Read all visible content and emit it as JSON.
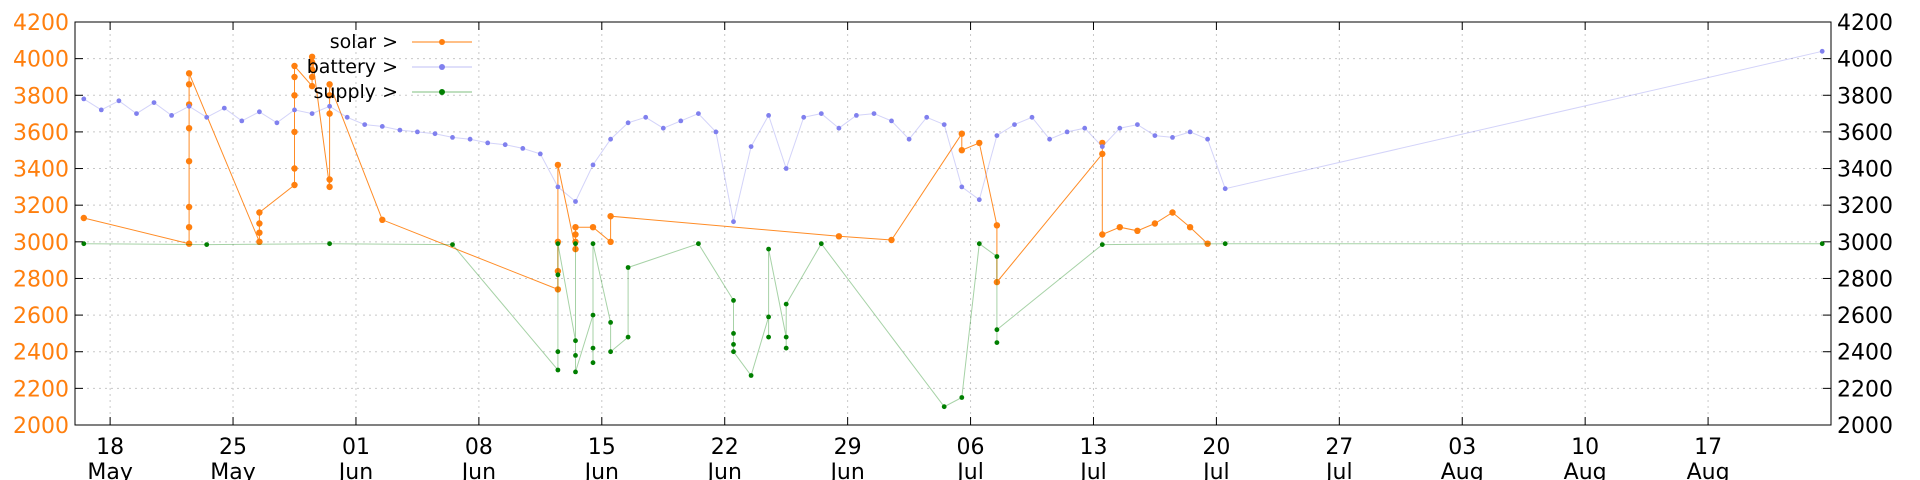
{
  "chart_data": {
    "type": "scatter",
    "title": "",
    "xlabel": "",
    "ylabel": "",
    "ylim": [
      2000,
      4200
    ],
    "y_ticks": [
      2000,
      2200,
      2400,
      2600,
      2800,
      3000,
      3200,
      3400,
      3600,
      3800,
      4000,
      4200
    ],
    "left_axis_color": "#ff7f0e",
    "right_axis_color": "#000000",
    "grid": true,
    "legend_position": "top-left",
    "x_range": [
      "2020-05-16",
      "2020-08-23"
    ],
    "x_ticks": [
      {
        "day": "18",
        "month": "May",
        "date": "2020-05-18"
      },
      {
        "day": "25",
        "month": "May",
        "date": "2020-05-25"
      },
      {
        "day": "01",
        "month": "Jun",
        "date": "2020-06-01"
      },
      {
        "day": "08",
        "month": "Jun",
        "date": "2020-06-08"
      },
      {
        "day": "15",
        "month": "Jun",
        "date": "2020-06-15"
      },
      {
        "day": "22",
        "month": "Jun",
        "date": "2020-06-22"
      },
      {
        "day": "29",
        "month": "Jun",
        "date": "2020-06-29"
      },
      {
        "day": "06",
        "month": "Jul",
        "date": "2020-07-06"
      },
      {
        "day": "13",
        "month": "Jul",
        "date": "2020-07-13"
      },
      {
        "day": "20",
        "month": "Jul",
        "date": "2020-07-20"
      },
      {
        "day": "27",
        "month": "Jul",
        "date": "2020-07-27"
      },
      {
        "day": "03",
        "month": "Aug",
        "date": "2020-08-03"
      },
      {
        "day": "10",
        "month": "Aug",
        "date": "2020-08-10"
      },
      {
        "day": "17",
        "month": "Aug",
        "date": "2020-08-17"
      }
    ],
    "series": [
      {
        "name": "solar >",
        "color": "#ff7f0e",
        "style": "line-points",
        "x": [
          "2020-05-16",
          "2020-05-22",
          "2020-05-22",
          "2020-05-22",
          "2020-05-22",
          "2020-05-22",
          "2020-05-22",
          "2020-05-22",
          "2020-05-22",
          "2020-05-26",
          "2020-05-26",
          "2020-05-26",
          "2020-05-26",
          "2020-05-28",
          "2020-05-28",
          "2020-05-28",
          "2020-05-28",
          "2020-05-28",
          "2020-05-28",
          "2020-05-29",
          "2020-05-29",
          "2020-05-29",
          "2020-05-29",
          "2020-05-29",
          "2020-05-30",
          "2020-05-30",
          "2020-05-30",
          "2020-05-30",
          "2020-05-30",
          "2020-06-02",
          "2020-06-12",
          "2020-06-12",
          "2020-06-12",
          "2020-06-12",
          "2020-06-13",
          "2020-06-13",
          "2020-06-13",
          "2020-06-13",
          "2020-06-14",
          "2020-06-15",
          "2020-06-15",
          "2020-06-28",
          "2020-07-01",
          "2020-07-05",
          "2020-07-05",
          "2020-07-06",
          "2020-07-07",
          "2020-07-07",
          "2020-07-13",
          "2020-07-13",
          "2020-07-13",
          "2020-07-14",
          "2020-07-15",
          "2020-07-16",
          "2020-07-17",
          "2020-07-18",
          "2020-07-19"
        ],
        "y": [
          3130,
          2990,
          3080,
          3190,
          3440,
          3620,
          3750,
          3860,
          3920,
          3000,
          3050,
          3100,
          3160,
          3310,
          3400,
          3600,
          3800,
          3900,
          3960,
          3850,
          3900,
          3940,
          3980,
          4010,
          3300,
          3340,
          3700,
          3800,
          3860,
          3120,
          2740,
          2840,
          3000,
          3420,
          2960,
          3000,
          3040,
          3080,
          3080,
          3000,
          3140,
          3030,
          3010,
          3590,
          3500,
          3540,
          3090,
          2780,
          3480,
          3540,
          3040,
          3080,
          3060,
          3100,
          3160,
          3080,
          2990
        ]
      },
      {
        "name": "battery >",
        "color": "#8080ee",
        "style": "points",
        "x": [
          "2020-05-16",
          "2020-05-17",
          "2020-05-18",
          "2020-05-19",
          "2020-05-20",
          "2020-05-21",
          "2020-05-22",
          "2020-05-23",
          "2020-05-24",
          "2020-05-25",
          "2020-05-26",
          "2020-05-27",
          "2020-05-28",
          "2020-05-29",
          "2020-05-30",
          "2020-05-31",
          "2020-06-01",
          "2020-06-02",
          "2020-06-03",
          "2020-06-04",
          "2020-06-05",
          "2020-06-06",
          "2020-06-07",
          "2020-06-08",
          "2020-06-09",
          "2020-06-10",
          "2020-06-11",
          "2020-06-12",
          "2020-06-13",
          "2020-06-14",
          "2020-06-15",
          "2020-06-16",
          "2020-06-17",
          "2020-06-18",
          "2020-06-19",
          "2020-06-20",
          "2020-06-21",
          "2020-06-22",
          "2020-06-23",
          "2020-06-24",
          "2020-06-25",
          "2020-06-26",
          "2020-06-27",
          "2020-06-28",
          "2020-06-29",
          "2020-06-30",
          "2020-07-01",
          "2020-07-02",
          "2020-07-03",
          "2020-07-04",
          "2020-07-05",
          "2020-07-06",
          "2020-07-07",
          "2020-07-08",
          "2020-07-09",
          "2020-07-10",
          "2020-07-11",
          "2020-07-12",
          "2020-07-13",
          "2020-07-14",
          "2020-07-15",
          "2020-07-16",
          "2020-07-17",
          "2020-07-18",
          "2020-07-19",
          "2020-07-20",
          "2020-08-23"
        ],
        "y": [
          3780,
          3720,
          3770,
          3700,
          3760,
          3690,
          3740,
          3680,
          3730,
          3660,
          3710,
          3650,
          3720,
          3700,
          3740,
          3680,
          3640,
          3630,
          3610,
          3600,
          3590,
          3570,
          3560,
          3540,
          3530,
          3510,
          3480,
          3300,
          3220,
          3420,
          3560,
          3650,
          3680,
          3620,
          3660,
          3700,
          3600,
          3110,
          3520,
          3690,
          3400,
          3680,
          3700,
          3620,
          3690,
          3700,
          3660,
          3560,
          3680,
          3640,
          3300,
          3230,
          3580,
          3640,
          3680,
          3560,
          3600,
          3620,
          3520,
          3620,
          3640,
          3580,
          3570,
          3600,
          3560,
          3290,
          4040
        ]
      },
      {
        "name": "supply >",
        "color": "#007f00",
        "style": "points",
        "x": [
          "2020-05-16",
          "2020-05-23",
          "2020-05-30",
          "2020-06-06",
          "2020-06-12",
          "2020-06-12",
          "2020-06-12",
          "2020-06-12",
          "2020-06-13",
          "2020-06-13",
          "2020-06-13",
          "2020-06-13",
          "2020-06-14",
          "2020-06-14",
          "2020-06-14",
          "2020-06-14",
          "2020-06-15",
          "2020-06-15",
          "2020-06-16",
          "2020-06-16",
          "2020-06-20",
          "2020-06-22",
          "2020-06-22",
          "2020-06-22",
          "2020-06-22",
          "2020-06-23",
          "2020-06-24",
          "2020-06-24",
          "2020-06-24",
          "2020-06-25",
          "2020-06-25",
          "2020-06-25",
          "2020-06-27",
          "2020-07-04",
          "2020-07-05",
          "2020-07-06",
          "2020-07-07",
          "2020-07-07",
          "2020-07-07",
          "2020-07-13",
          "2020-07-20",
          "2020-08-23"
        ],
        "y": [
          2990,
          2985,
          2990,
          2985,
          2300,
          2820,
          2400,
          2990,
          2460,
          2380,
          2990,
          2290,
          2600,
          2420,
          2340,
          2990,
          2560,
          2400,
          2480,
          2860,
          2990,
          2680,
          2500,
          2440,
          2400,
          2270,
          2590,
          2480,
          2960,
          2480,
          2420,
          2660,
          2990,
          2100,
          2150,
          2990,
          2920,
          2450,
          2520,
          2985,
          2990,
          2990
        ]
      }
    ]
  }
}
